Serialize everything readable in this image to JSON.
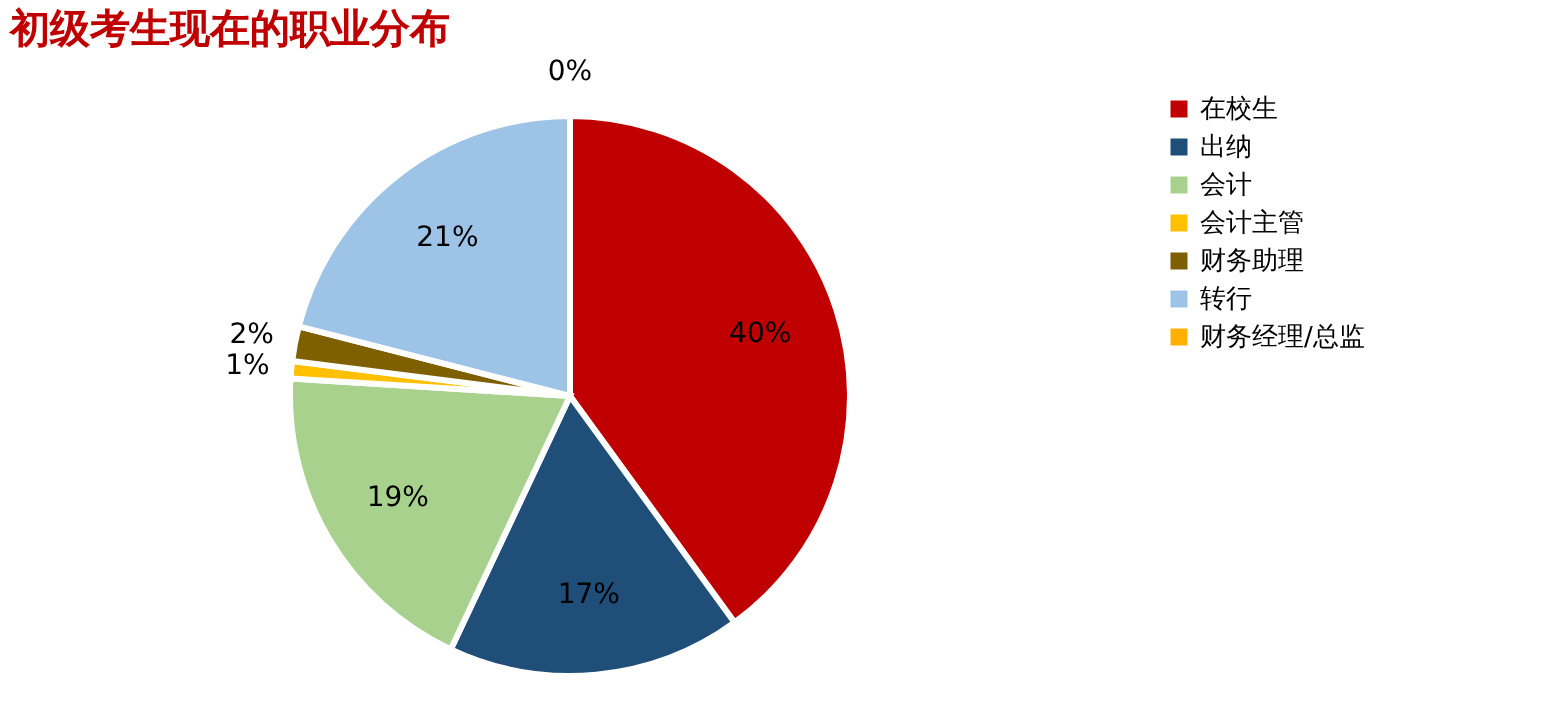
{
  "chart_data": {
    "type": "pie",
    "title": "初级考生现在的职业分布",
    "categories": [
      "在校生",
      "出纳",
      "会计",
      "会计主管",
      "财务助理",
      "转行",
      "财务经理/总监"
    ],
    "values": [
      40,
      17,
      19,
      1,
      2,
      21,
      0
    ],
    "colors": [
      "#c00000",
      "#1f4e79",
      "#a9d18e",
      "#ffc000",
      "#7f6000",
      "#9dc3e6",
      "#ffb000"
    ],
    "value_labels": [
      "40%",
      "17%",
      "19%",
      "1%",
      "2%",
      "21%",
      "0%"
    ],
    "legend": "right"
  }
}
